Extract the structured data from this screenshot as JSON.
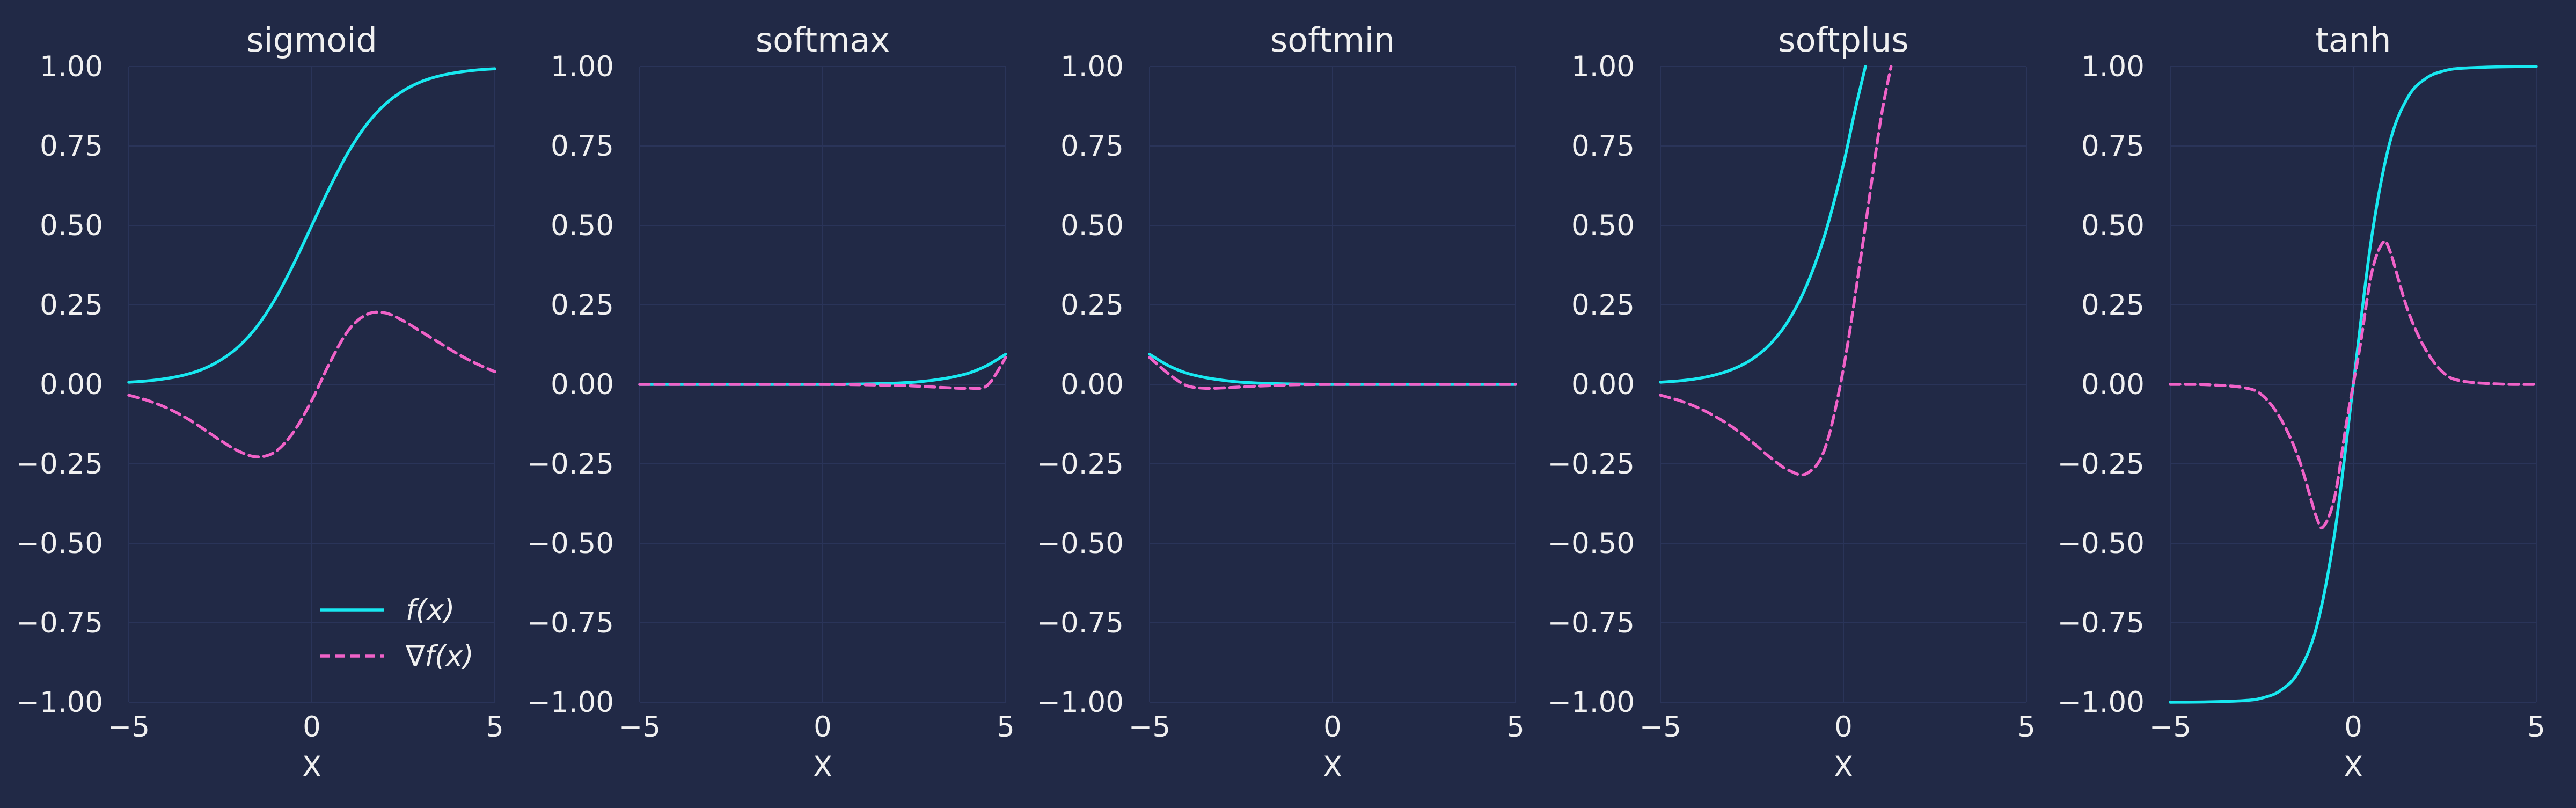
{
  "colors": {
    "background": "#212946",
    "grid": "#2A3459",
    "text": "#f0f0f0",
    "function": "#18E8F0",
    "gradient": "#F062C8"
  },
  "legend": {
    "entries": [
      "f(x)",
      "∇f(x)"
    ],
    "placement": "lower right of first panel"
  },
  "chart_data": [
    {
      "type": "line",
      "title": "sigmoid",
      "xlabel": "X",
      "xlim": [
        -5,
        5
      ],
      "ylim": [
        -1,
        1
      ],
      "xticks": [
        "−5",
        "0",
        "5"
      ],
      "yticks": [
        "−1.00",
        "−0.75",
        "−0.50",
        "−0.25",
        "0.00",
        "0.25",
        "0.50",
        "0.75",
        "1.00"
      ],
      "grid": true,
      "series": [
        {
          "name": "f(x)",
          "style": "solid",
          "x": [
            -5,
            -4.5,
            -4,
            -3.5,
            -3,
            -2.5,
            -2,
            -1.5,
            -1,
            -0.5,
            0,
            0.5,
            1,
            1.5,
            2,
            2.5,
            3,
            3.5,
            4,
            4.5,
            5
          ],
          "y": [
            0.007,
            0.011,
            0.018,
            0.029,
            0.047,
            0.076,
            0.119,
            0.182,
            0.269,
            0.378,
            0.5,
            0.622,
            0.731,
            0.818,
            0.881,
            0.924,
            0.953,
            0.971,
            0.982,
            0.989,
            0.993
          ]
        },
        {
          "name": "∇f(x)",
          "style": "dashed",
          "x": [
            -5,
            -4.5,
            -4,
            -3.5,
            -3,
            -2.5,
            -2,
            -1.5,
            -1,
            -0.5,
            0,
            0.5,
            1,
            1.5,
            2,
            2.5,
            3,
            3.5,
            4,
            4.5,
            5
          ],
          "y": [
            -0.034,
            -0.05,
            -0.072,
            -0.101,
            -0.137,
            -0.176,
            -0.21,
            -0.228,
            -0.212,
            -0.15,
            -0.05,
            0.07,
            0.17,
            0.22,
            0.225,
            0.2,
            0.165,
            0.13,
            0.095,
            0.065,
            0.04
          ]
        }
      ]
    },
    {
      "type": "line",
      "title": "softmax",
      "xlabel": "X",
      "xlim": [
        -5,
        5
      ],
      "ylim": [
        -1,
        1
      ],
      "xticks": [
        "−5",
        "0",
        "5"
      ],
      "yticks": [
        "−1.00",
        "−0.75",
        "−0.50",
        "−0.25",
        "0.00",
        "0.25",
        "0.50",
        "0.75",
        "1.00"
      ],
      "grid": true,
      "series": [
        {
          "name": "f(x)",
          "style": "solid",
          "x": [
            -5,
            -4,
            -3,
            -2,
            -1,
            0,
            1,
            1.5,
            2,
            2.5,
            3,
            3.5,
            4,
            4.5,
            5
          ],
          "y": [
            0,
            0,
            0,
            0,
            0,
            0,
            0.001,
            0.002,
            0.004,
            0.007,
            0.013,
            0.022,
            0.036,
            0.06,
            0.095
          ]
        },
        {
          "name": "∇f(x)",
          "style": "dashed",
          "x": [
            -5,
            -4,
            -3,
            -2,
            -1,
            0,
            1,
            1.5,
            2,
            2.5,
            3,
            3.5,
            4,
            4.5,
            5
          ],
          "y": [
            0,
            0,
            0,
            0,
            0,
            0,
            -0.001,
            -0.002,
            -0.003,
            -0.005,
            -0.008,
            -0.011,
            -0.012,
            -0.003,
            0.085
          ]
        }
      ]
    },
    {
      "type": "line",
      "title": "softmin",
      "xlabel": "X",
      "xlim": [
        -5,
        5
      ],
      "ylim": [
        -1,
        1
      ],
      "xticks": [
        "−5",
        "0",
        "5"
      ],
      "yticks": [
        "−1.00",
        "−0.75",
        "−0.50",
        "−0.25",
        "0.00",
        "0.25",
        "0.50",
        "0.75",
        "1.00"
      ],
      "grid": true,
      "series": [
        {
          "name": "f(x)",
          "style": "solid",
          "x": [
            -5,
            -4.5,
            -4,
            -3.5,
            -3,
            -2.5,
            -2,
            -1.5,
            -1,
            0,
            1,
            2,
            3,
            4,
            5
          ],
          "y": [
            0.095,
            0.06,
            0.036,
            0.022,
            0.013,
            0.007,
            0.004,
            0.002,
            0.001,
            0,
            0,
            0,
            0,
            0,
            0
          ]
        },
        {
          "name": "∇f(x)",
          "style": "dashed",
          "x": [
            -5,
            -4.5,
            -4,
            -3.5,
            -3,
            -2.5,
            -2,
            -1.5,
            -1,
            0,
            1,
            2,
            3,
            4,
            5
          ],
          "y": [
            0.085,
            0.035,
            -0.003,
            -0.012,
            -0.011,
            -0.008,
            -0.005,
            -0.003,
            -0.001,
            0,
            0,
            0,
            0,
            0,
            0
          ]
        }
      ]
    },
    {
      "type": "line",
      "title": "softplus",
      "xlabel": "X",
      "xlim": [
        -5,
        5
      ],
      "ylim": [
        -1,
        1
      ],
      "xticks": [
        "−5",
        "0",
        "5"
      ],
      "yticks": [
        "−1.00",
        "−0.75",
        "−0.50",
        "−0.25",
        "0.00",
        "0.25",
        "0.50",
        "0.75",
        "1.00"
      ],
      "grid": true,
      "series": [
        {
          "name": "f(x)",
          "style": "solid",
          "x": [
            -5,
            -4.5,
            -4,
            -3.5,
            -3,
            -2.5,
            -2,
            -1.5,
            -1,
            -0.5,
            0,
            0.3,
            0.6
          ],
          "y": [
            0.007,
            0.011,
            0.018,
            0.03,
            0.049,
            0.079,
            0.127,
            0.201,
            0.313,
            0.474,
            0.693,
            0.854,
            1.0
          ]
        },
        {
          "name": "∇f(x)",
          "style": "dashed",
          "x": [
            -5,
            -4.5,
            -4,
            -3.5,
            -3,
            -2.5,
            -2,
            -1.5,
            -1,
            -0.5,
            0,
            0.5,
            1,
            1.3
          ],
          "y": [
            -0.034,
            -0.05,
            -0.072,
            -0.101,
            -0.137,
            -0.181,
            -0.23,
            -0.27,
            -0.28,
            -0.2,
            0.05,
            0.42,
            0.82,
            1.0
          ]
        }
      ]
    },
    {
      "type": "line",
      "title": "tanh",
      "xlabel": "X",
      "xlim": [
        -5,
        5
      ],
      "ylim": [
        -1,
        1
      ],
      "xticks": [
        "−5",
        "0",
        "5"
      ],
      "yticks": [
        "−1.00",
        "−0.75",
        "−0.50",
        "−0.25",
        "0.00",
        "0.25",
        "0.50",
        "0.75",
        "1.00"
      ],
      "grid": true,
      "series": [
        {
          "name": "f(x)",
          "style": "solid",
          "x": [
            -5,
            -4,
            -3,
            -2.5,
            -2,
            -1.5,
            -1,
            -0.5,
            0,
            0.5,
            1,
            1.5,
            2,
            2.5,
            3,
            4,
            5
          ],
          "y": [
            -1,
            -0.999,
            -0.995,
            -0.987,
            -0.964,
            -0.905,
            -0.762,
            -0.462,
            0,
            0.462,
            0.762,
            0.905,
            0.964,
            0.987,
            0.995,
            0.999,
            1
          ]
        },
        {
          "name": "∇f(x)",
          "style": "dashed",
          "x": [
            -5,
            -4,
            -3,
            -2.5,
            -2,
            -1.5,
            -1,
            -0.8,
            -0.5,
            -0.2,
            0,
            0.2,
            0.5,
            0.8,
            1,
            1.5,
            2,
            2.5,
            3,
            4,
            5
          ],
          "y": [
            0,
            -0.001,
            -0.01,
            -0.033,
            -0.105,
            -0.23,
            -0.42,
            -0.445,
            -0.35,
            -0.13,
            0,
            0.13,
            0.35,
            0.445,
            0.42,
            0.23,
            0.105,
            0.033,
            0.01,
            0.001,
            0
          ]
        }
      ]
    }
  ]
}
